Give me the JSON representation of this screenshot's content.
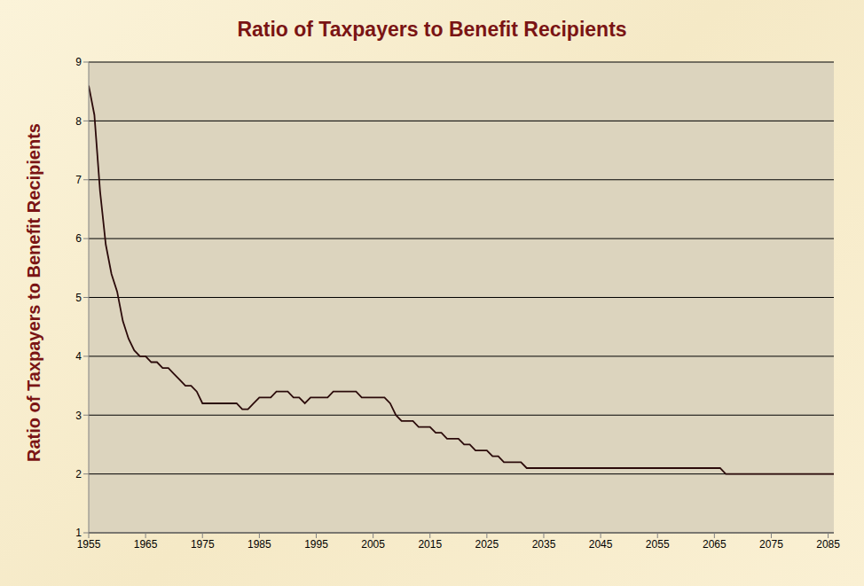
{
  "chart_data": {
    "type": "line",
    "title": "Ratio of Taxpayers to Benefit Recipients",
    "y_label": "Ratio of Taxpayers to Benefit Recipients",
    "color": "#2b0a0a",
    "grid": true,
    "xlim": [
      1955,
      2086
    ],
    "ylim": [
      1,
      9
    ],
    "xticks": [
      1955,
      1965,
      1975,
      1985,
      1995,
      2005,
      2015,
      2025,
      2035,
      2045,
      2055,
      2065,
      2075,
      2085
    ],
    "yticks": [
      1,
      2,
      3,
      4,
      5,
      6,
      7,
      8,
      9
    ],
    "x": [
      1955,
      1956,
      1957,
      1958,
      1959,
      1960,
      1961,
      1962,
      1963,
      1964,
      1965,
      1966,
      1967,
      1968,
      1969,
      1970,
      1971,
      1972,
      1973,
      1974,
      1975,
      1976,
      1977,
      1978,
      1979,
      1980,
      1981,
      1982,
      1983,
      1984,
      1985,
      1986,
      1987,
      1988,
      1989,
      1990,
      1991,
      1992,
      1993,
      1994,
      1995,
      1996,
      1997,
      1998,
      1999,
      2000,
      2001,
      2002,
      2003,
      2004,
      2005,
      2006,
      2007,
      2008,
      2009,
      2010,
      2011,
      2012,
      2013,
      2014,
      2015,
      2016,
      2017,
      2018,
      2019,
      2020,
      2021,
      2022,
      2023,
      2024,
      2025,
      2026,
      2027,
      2028,
      2029,
      2030,
      2031,
      2032,
      2033,
      2034,
      2035,
      2036,
      2037,
      2038,
      2039,
      2040,
      2041,
      2042,
      2043,
      2044,
      2045,
      2046,
      2047,
      2048,
      2049,
      2050,
      2051,
      2052,
      2053,
      2054,
      2055,
      2056,
      2057,
      2058,
      2059,
      2060,
      2061,
      2062,
      2063,
      2064,
      2065,
      2066,
      2067,
      2068,
      2069,
      2070,
      2071,
      2072,
      2073,
      2074,
      2075,
      2076,
      2077,
      2078,
      2079,
      2080,
      2081,
      2082,
      2083,
      2084,
      2085,
      2086
    ],
    "values": [
      8.6,
      8.1,
      6.8,
      5.9,
      5.4,
      5.1,
      4.6,
      4.3,
      4.1,
      4.0,
      4.0,
      3.9,
      3.9,
      3.8,
      3.8,
      3.7,
      3.6,
      3.5,
      3.5,
      3.4,
      3.2,
      3.2,
      3.2,
      3.2,
      3.2,
      3.2,
      3.2,
      3.1,
      3.1,
      3.2,
      3.3,
      3.3,
      3.3,
      3.4,
      3.4,
      3.4,
      3.3,
      3.3,
      3.2,
      3.3,
      3.3,
      3.3,
      3.3,
      3.4,
      3.4,
      3.4,
      3.4,
      3.4,
      3.3,
      3.3,
      3.3,
      3.3,
      3.3,
      3.2,
      3.0,
      2.9,
      2.9,
      2.9,
      2.8,
      2.8,
      2.8,
      2.7,
      2.7,
      2.6,
      2.6,
      2.6,
      2.5,
      2.5,
      2.4,
      2.4,
      2.4,
      2.3,
      2.3,
      2.2,
      2.2,
      2.2,
      2.2,
      2.1,
      2.1,
      2.1,
      2.1,
      2.1,
      2.1,
      2.1,
      2.1,
      2.1,
      2.1,
      2.1,
      2.1,
      2.1,
      2.1,
      2.1,
      2.1,
      2.1,
      2.1,
      2.1,
      2.1,
      2.1,
      2.1,
      2.1,
      2.1,
      2.1,
      2.1,
      2.1,
      2.1,
      2.1,
      2.1,
      2.1,
      2.1,
      2.1,
      2.1,
      2.1,
      2.0,
      2.0,
      2.0,
      2.0,
      2.0,
      2.0,
      2.0,
      2.0,
      2.0,
      2.0,
      2.0,
      2.0,
      2.0,
      2.0,
      2.0,
      2.0,
      2.0,
      2.0,
      2.0,
      2.0
    ]
  }
}
